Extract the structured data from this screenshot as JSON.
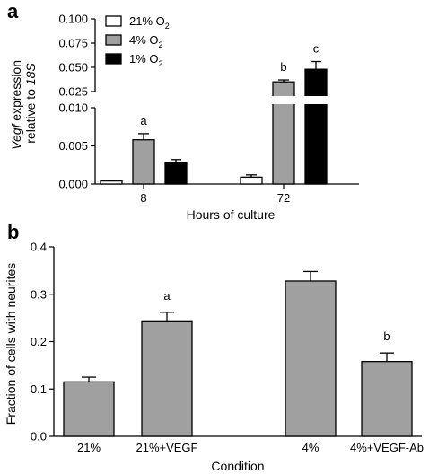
{
  "chart_data": [
    {
      "panel_label": "a",
      "type": "bar",
      "x_axis_type": "categorical",
      "categories": [
        "8",
        "72"
      ],
      "xlabel": "Hours of culture",
      "ylabel_parts": [
        "Vegf",
        " expression",
        "relative to ",
        "18S"
      ],
      "y_axis_break": true,
      "y_upper_segment": {
        "range": [
          0.025,
          0.1
        ],
        "ticks": [
          "0.025",
          "0.050",
          "0.075",
          "0.100"
        ]
      },
      "y_lower_segment": {
        "range": [
          0,
          0.01
        ],
        "ticks": [
          "0.000",
          "0.005",
          "0.010"
        ]
      },
      "grid": false,
      "legend_position": "top-left",
      "series": [
        {
          "name": "21% O",
          "sub": "2",
          "fill": "#ffffff",
          "values": [
            0.0004,
            0.0009
          ],
          "errors": [
            0.0001,
            0.0003
          ],
          "letters": [
            "",
            ""
          ]
        },
        {
          "name": "4% O",
          "sub": "2",
          "fill": "#a0a0a0",
          "values": [
            0.0058,
            0.035
          ],
          "errors": [
            0.0008,
            0.002
          ],
          "letters": [
            "a",
            "b"
          ]
        },
        {
          "name": "1% O",
          "sub": "2",
          "fill": "#000000",
          "values": [
            0.0028,
            0.048
          ],
          "errors": [
            0.0004,
            0.008
          ],
          "letters": [
            "",
            "c"
          ]
        }
      ]
    },
    {
      "panel_label": "b",
      "type": "bar",
      "x_axis_type": "categorical",
      "categories": [
        "21%",
        "21%+VEGF",
        "4%",
        "4%+VEGF-Ab"
      ],
      "xlabel": "Condition",
      "ylabel": "Fraction of cells with neurites",
      "ylim": [
        0,
        0.4
      ],
      "ticks": [
        "0.0",
        "0.1",
        "0.2",
        "0.3",
        "0.4"
      ],
      "grid": false,
      "bar_fill": "#a0a0a0",
      "values": [
        0.115,
        0.242,
        0.328,
        0.158
      ],
      "errors": [
        0.01,
        0.02,
        0.02,
        0.018
      ],
      "letters": [
        "",
        "a",
        "",
        "b"
      ]
    }
  ]
}
